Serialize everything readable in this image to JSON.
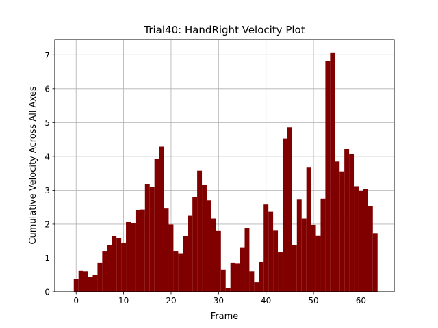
{
  "chart_data": {
    "type": "bar",
    "title": "Trial40: HandRight Velocity Plot",
    "xlabel": "Frame",
    "ylabel": "Cumulative Velocity Across All Axes",
    "xlim": [
      -4.5,
      67
    ],
    "ylim": [
      0,
      7.45
    ],
    "xticks": [
      0,
      10,
      20,
      30,
      40,
      50,
      60
    ],
    "yticks": [
      0,
      1,
      2,
      3,
      4,
      5,
      6,
      7
    ],
    "grid": true,
    "bar_color": "#800000",
    "bar_width": 1.0,
    "x": [
      0,
      1,
      2,
      3,
      4,
      5,
      6,
      7,
      8,
      9,
      10,
      11,
      12,
      13,
      14,
      15,
      16,
      17,
      18,
      19,
      20,
      21,
      22,
      23,
      24,
      25,
      26,
      27,
      28,
      29,
      30,
      31,
      32,
      33,
      34,
      35,
      36,
      37,
      38,
      39,
      40,
      41,
      42,
      43,
      44,
      45,
      46,
      47,
      48,
      49,
      50,
      51,
      52,
      53,
      54,
      55,
      56,
      57,
      58,
      59,
      60,
      61,
      62,
      63
    ],
    "values": [
      0.38,
      0.63,
      0.6,
      0.44,
      0.5,
      0.85,
      1.19,
      1.38,
      1.65,
      1.59,
      1.44,
      2.06,
      2.02,
      2.42,
      2.43,
      3.17,
      3.1,
      3.93,
      4.29,
      2.46,
      1.99,
      1.19,
      1.14,
      1.65,
      2.25,
      2.79,
      3.58,
      3.15,
      2.7,
      2.17,
      1.8,
      0.65,
      0.12,
      0.85,
      0.84,
      1.3,
      1.88,
      0.6,
      0.28,
      0.88,
      2.58,
      2.37,
      1.81,
      1.17,
      4.53,
      4.86,
      1.38,
      2.74,
      2.17,
      3.67,
      1.98,
      1.66,
      2.75,
      6.81,
      7.07,
      3.85,
      3.56,
      4.22,
      4.07,
      3.12,
      2.97,
      3.04,
      2.53,
      1.73
    ]
  }
}
